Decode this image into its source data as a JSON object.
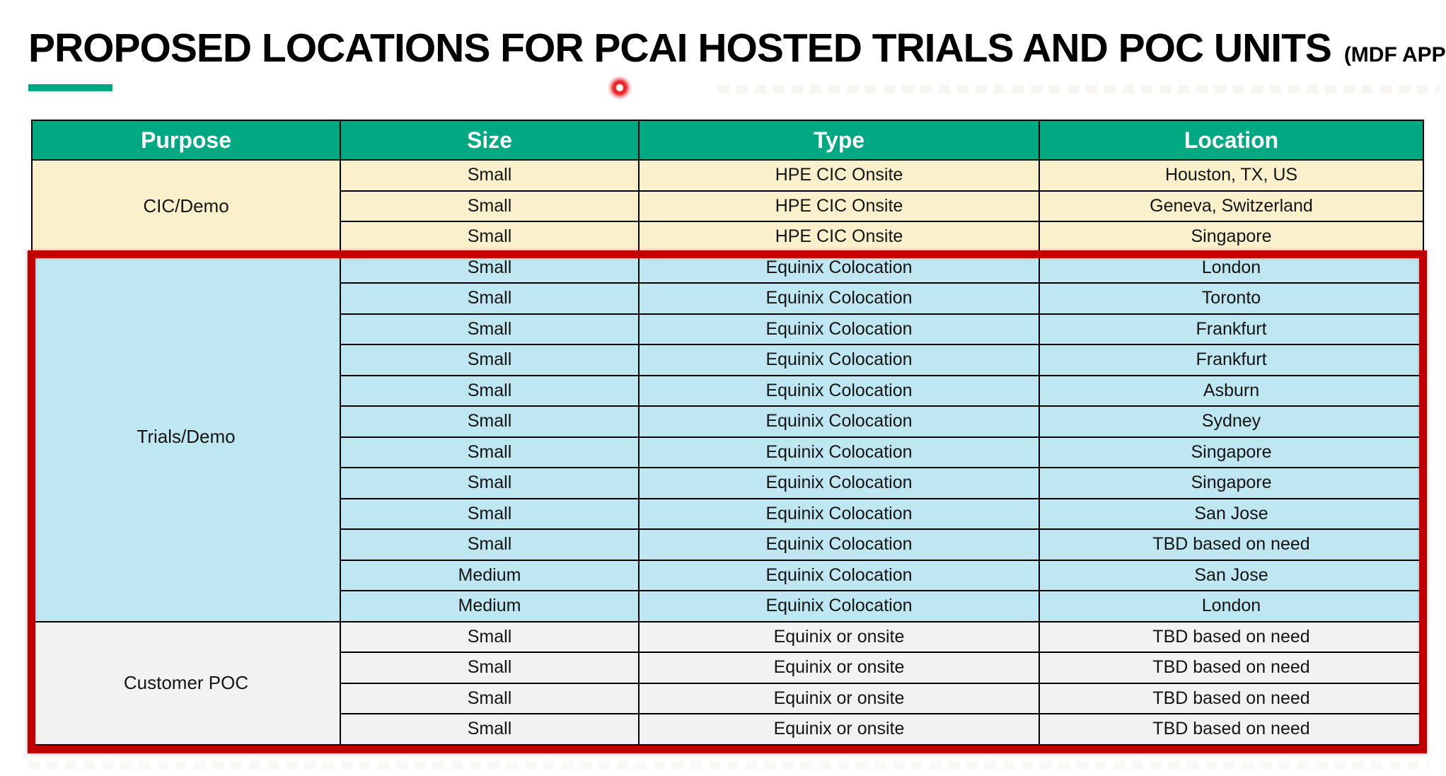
{
  "title": {
    "main": "PROPOSED LOCATIONS FOR PCAI HOSTED TRIALS AND POC UNITS",
    "suffix": "(MDF APPROVED)"
  },
  "colors": {
    "header_bg": "#01A982",
    "accent_green": "#01A982",
    "cic_section_bg": "#FAF0CC",
    "trials_section_bg": "#BEE7F2",
    "poc_section_bg": "#F2F2F2",
    "highlight_border": "#C00000",
    "laser_dot_red": "#E8252B",
    "header_text": "#FFFFFF",
    "body_text": "#141414"
  },
  "table": {
    "headers": [
      "Purpose",
      "Size",
      "Type",
      "Location"
    ],
    "sections": [
      {
        "purpose": "CIC/Demo",
        "bg": "#FAF0CC",
        "rows": [
          [
            "Small",
            "HPE CIC Onsite",
            "Houston, TX, US"
          ],
          [
            "Small",
            "HPE CIC Onsite",
            "Geneva, Switzerland"
          ],
          [
            "Small",
            "HPE CIC Onsite",
            "Singapore"
          ]
        ]
      },
      {
        "purpose": "Trials/Demo",
        "bg": "#BEE7F2",
        "rows": [
          [
            "Small",
            "Equinix Colocation",
            "London"
          ],
          [
            "Small",
            "Equinix Colocation",
            "Toronto"
          ],
          [
            "Small",
            "Equinix Colocation",
            "Frankfurt"
          ],
          [
            "Small",
            "Equinix Colocation",
            "Frankfurt"
          ],
          [
            "Small",
            "Equinix Colocation",
            "Asburn"
          ],
          [
            "Small",
            "Equinix Colocation",
            "Sydney"
          ],
          [
            "Small",
            "Equinix Colocation",
            "Singapore"
          ],
          [
            "Small",
            "Equinix Colocation",
            "Singapore"
          ],
          [
            "Small",
            "Equinix Colocation",
            "San Jose"
          ],
          [
            "Small",
            "Equinix Colocation",
            "TBD based on need"
          ],
          [
            "Medium",
            "Equinix Colocation",
            "San Jose"
          ],
          [
            "Medium",
            "Equinix Colocation",
            "London"
          ]
        ]
      },
      {
        "purpose": "Customer POC",
        "bg": "#F2F2F2",
        "rows": [
          [
            "Small",
            "Equinix or onsite",
            "TBD based on need"
          ],
          [
            "Small",
            "Equinix or onsite",
            "TBD based on need"
          ],
          [
            "Small",
            "Equinix or onsite",
            "TBD based on need"
          ],
          [
            "Small",
            "Equinix or onsite",
            "TBD based on need"
          ]
        ]
      }
    ]
  }
}
